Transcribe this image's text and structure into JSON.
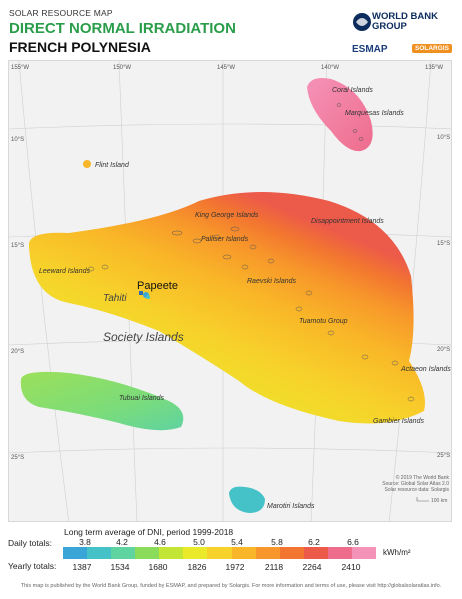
{
  "header": {
    "small_title": "SOLAR RESOURCE MAP",
    "title": "DIRECT NORMAL IRRADIATION",
    "region": "FRENCH POLYNESIA",
    "wb_line1": "WORLD BANK GROUP",
    "esmap": "ESMAP",
    "solargis": "SOLARGIS"
  },
  "map": {
    "lon_labels": [
      "155°W",
      "150°W",
      "145°W",
      "140°W",
      "135°W"
    ],
    "lat_labels": [
      "10°S",
      "15°S",
      "20°S",
      "25°S"
    ],
    "place_labels": {
      "coral": "Coral Islands",
      "marquesas": "Marquesas Islands",
      "flint": "Flint Island",
      "king_george": "King George Islands",
      "disappointment": "Disappointment Islands",
      "palliser": "Palliser Islands",
      "leeward": "Leeward Islands",
      "raevski": "Raevski Islands",
      "papeete": "Papeete",
      "tahiti": "Tahiti",
      "tuamotu": "Tuamotu Group",
      "society": "Society Islands",
      "actaeon": "Actaeon Islands",
      "tubuai": "Tubuai Islands",
      "gambier": "Gambier Islands",
      "marotiri": "Marotiri Islands"
    },
    "scale": "100 km",
    "credit1": "© 2019 The World Bank",
    "credit2": "Source: Global Solar Atlas 2.0",
    "credit3": "Solar resource data: Solargis"
  },
  "legend": {
    "title": "Long term average of DNI, period 1999-2018",
    "daily_label": "Daily totals:",
    "yearly_label": "Yearly totals:",
    "daily_ticks": [
      "3.8",
      "4.2",
      "4.6",
      "5.0",
      "5.4",
      "5.8",
      "6.2",
      "6.6"
    ],
    "yearly_ticks": [
      "1387",
      "1534",
      "1680",
      "1826",
      "1972",
      "2118",
      "2264",
      "2410"
    ],
    "unit": "kWh/m²",
    "colors": [
      "#3aa6d8",
      "#45c2c8",
      "#5fd3a0",
      "#8bdc5a",
      "#c3e536",
      "#eaea2a",
      "#f7d22a",
      "#f9b628",
      "#f7962a",
      "#f27530",
      "#ec5a4a",
      "#ee6d8c",
      "#f592b8"
    ]
  },
  "footer": "This map is published by the World Bank Group, funded by ESMAP, and prepared by Solargis. For more information and terms of use, please visit http://globalsolaratlas.info."
}
